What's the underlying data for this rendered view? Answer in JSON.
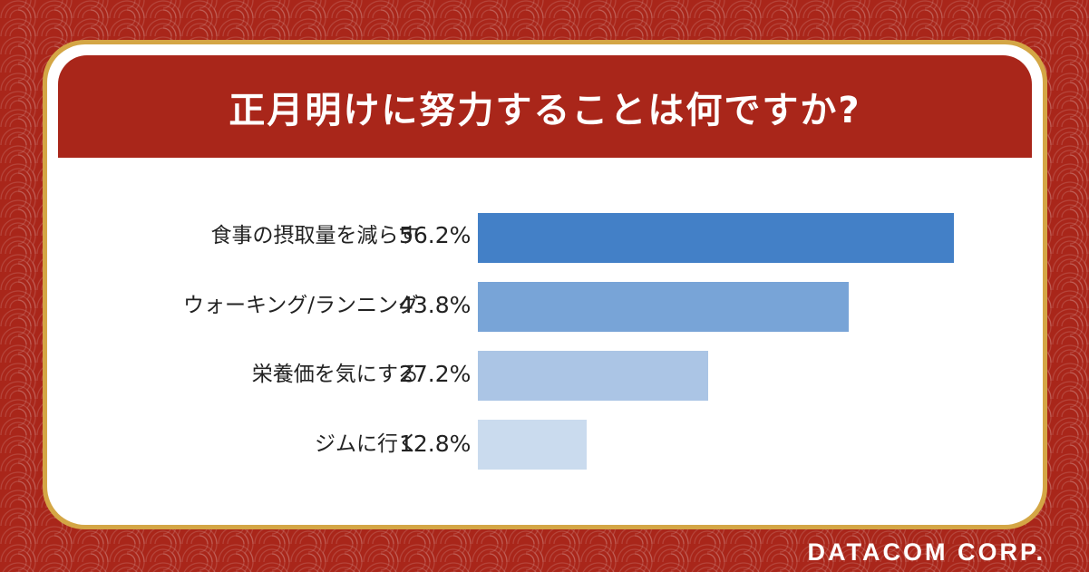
{
  "chart_data": {
    "type": "bar",
    "orientation": "horizontal",
    "title": "正月明けに努力することは何ですか?",
    "categories": [
      "食事の摂取量を減らす",
      "ウォーキング/ランニング",
      "栄養価を気にする",
      "ジムに行く"
    ],
    "values": [
      56.2,
      43.8,
      27.2,
      12.8
    ],
    "value_labels": [
      "56.2%",
      "43.8%",
      "27.2%",
      "12.8%"
    ],
    "colors": [
      "#4380c7",
      "#78a4d7",
      "#abc5e5",
      "#cadbee"
    ],
    "xlim": [
      0,
      56.2
    ],
    "grid": false,
    "legend": "none"
  },
  "brand": "DATACOM CORP."
}
